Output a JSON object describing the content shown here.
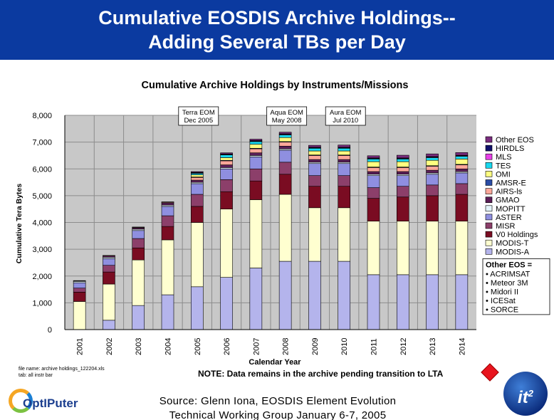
{
  "slide": {
    "title_line1": "Cumulative EOSDIS Archive Holdings--",
    "title_line2": "Adding Several TBs per Day",
    "file_note_line1": "file name: archive holdings_122204.xls",
    "file_note_line2": "tab: all instr bar",
    "note": "NOTE: Data remains in the archive pending transition to LTA",
    "source_line1": "Source: Glenn Iona, EOSDIS Element Evolution",
    "source_line2": "Technical Working Group January 6-7, 2005",
    "optiputer_logo": "OptIPuter",
    "it2_logo_main": "it",
    "it2_logo_sup": "2"
  },
  "chart_data": {
    "type": "bar",
    "stacked": true,
    "title": "Cumulative Archive Holdings by Instruments/Missions",
    "xlabel": "Calendar Year",
    "ylabel": "Cumulative Tera Bytes",
    "ylim": [
      0,
      8000
    ],
    "yticks": [
      0,
      1000,
      2000,
      3000,
      4000,
      5000,
      6000,
      7000,
      8000
    ],
    "ytick_labels": [
      "0",
      "1,000",
      "2,000",
      "3,000",
      "4,000",
      "5,000",
      "6,000",
      "7,000",
      "8,000"
    ],
    "categories": [
      "2001",
      "2002",
      "2003",
      "2004",
      "2005",
      "2006",
      "2007",
      "2008",
      "2009",
      "2010",
      "2011",
      "2012",
      "2013",
      "2014"
    ],
    "annotations": [
      {
        "label_line1": "Terra EOM",
        "label_line2": "Dec 2005",
        "year": "2005"
      },
      {
        "label_line1": "Aqua EOM",
        "label_line2": "May 2008",
        "year": "2008"
      },
      {
        "label_line1": "Aura EOM",
        "label_line2": "Jul 2010",
        "year": "2010"
      }
    ],
    "series": [
      {
        "name": "MODIS-A",
        "color": "#b4b4ec",
        "values": [
          0,
          350,
          900,
          1300,
          1600,
          1950,
          2300,
          2550,
          2550,
          2550,
          2050,
          2050,
          2050,
          2050
        ]
      },
      {
        "name": "MODIS-T",
        "color": "#ffffd0",
        "values": [
          1050,
          1350,
          1700,
          2050,
          2400,
          2550,
          2550,
          2500,
          2000,
          2000,
          2000,
          2000,
          2000,
          2000
        ]
      },
      {
        "name": "V0 Holdings",
        "color": "#7a0c22",
        "values": [
          350,
          450,
          450,
          500,
          600,
          650,
          700,
          750,
          800,
          800,
          850,
          900,
          950,
          1000
        ]
      },
      {
        "name": "MISR",
        "color": "#8c3f6a",
        "values": [
          150,
          250,
          350,
          400,
          450,
          450,
          450,
          450,
          400,
          400,
          400,
          400,
          400,
          400
        ]
      },
      {
        "name": "ASTER",
        "color": "#8f8fe0",
        "values": [
          200,
          250,
          300,
          350,
          400,
          400,
          450,
          450,
          450,
          450,
          450,
          400,
          400,
          400
        ]
      },
      {
        "name": "MOPITT",
        "color": "#e4f4fa",
        "values": [
          50,
          50,
          50,
          50,
          50,
          50,
          50,
          50,
          50,
          50,
          50,
          50,
          50,
          50
        ]
      },
      {
        "name": "GMAO",
        "color": "#5c1f58",
        "values": [
          20,
          50,
          50,
          80,
          80,
          100,
          100,
          100,
          100,
          100,
          100,
          100,
          100,
          100
        ]
      },
      {
        "name": "AIRS-ls",
        "color": "#ffa89a",
        "values": [
          10,
          20,
          20,
          30,
          100,
          150,
          150,
          150,
          150,
          150,
          150,
          150,
          150,
          150
        ]
      },
      {
        "name": "AMSR-E",
        "color": "#2a4ca6",
        "values": [
          0,
          0,
          10,
          10,
          20,
          20,
          20,
          20,
          20,
          20,
          20,
          20,
          20,
          20
        ]
      },
      {
        "name": "OMI",
        "color": "#ffff80",
        "values": [
          0,
          0,
          0,
          0,
          80,
          100,
          150,
          150,
          150,
          150,
          200,
          200,
          200,
          200
        ]
      },
      {
        "name": "TES",
        "color": "#18d8ee",
        "values": [
          0,
          0,
          0,
          0,
          50,
          100,
          100,
          100,
          100,
          100,
          100,
          100,
          100,
          100
        ]
      },
      {
        "name": "MLS",
        "color": "#e840e8",
        "values": [
          0,
          0,
          0,
          0,
          20,
          20,
          20,
          20,
          20,
          20,
          20,
          20,
          20,
          20
        ]
      },
      {
        "name": "HIRDLS",
        "color": "#10106a",
        "values": [
          0,
          0,
          0,
          0,
          20,
          20,
          20,
          20,
          20,
          20,
          20,
          20,
          20,
          20
        ]
      },
      {
        "name": "Other EOS",
        "color": "#7a2c7e",
        "values": [
          0,
          0,
          0,
          0,
          30,
          40,
          50,
          60,
          70,
          80,
          80,
          100,
          100,
          100
        ]
      }
    ],
    "legend_order": [
      "Other EOS",
      "HIRDLS",
      "MLS",
      "TES",
      "OMI",
      "AMSR-E",
      "AIRS-ls",
      "GMAO",
      "MOPITT",
      "ASTER",
      "MISR",
      "V0 Holdings",
      "MODIS-T",
      "MODIS-A"
    ],
    "legend_position": "right",
    "other_eos": {
      "heading": "Other EOS =",
      "items": [
        "• ACRIMSAT",
        "• Meteor 3M",
        "• Midori II",
        "• ICESat",
        "• SORCE"
      ]
    },
    "grid": true
  }
}
